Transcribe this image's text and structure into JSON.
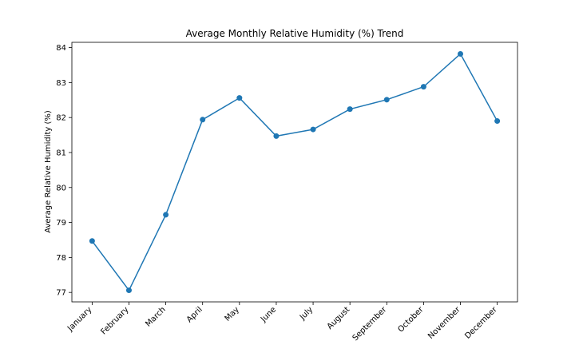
{
  "chart_data": {
    "type": "line",
    "title": "Average Monthly Relative Humidity (%) Trend",
    "xlabel": "",
    "ylabel": "Average Relative Humidity (%)",
    "categories": [
      "January",
      "February",
      "March",
      "April",
      "May",
      "June",
      "July",
      "August",
      "September",
      "October",
      "November",
      "December"
    ],
    "series": [
      {
        "values": [
          78.47,
          77.06,
          79.22,
          81.94,
          82.56,
          81.47,
          81.66,
          82.24,
          82.51,
          82.88,
          83.82,
          81.9
        ],
        "color": "#1f77b4",
        "marker": "circle"
      }
    ],
    "ylim": [
      76.73,
      84.15
    ],
    "yticks": [
      77,
      78,
      79,
      80,
      81,
      82,
      83,
      84
    ],
    "grid": false,
    "legend": "none"
  }
}
